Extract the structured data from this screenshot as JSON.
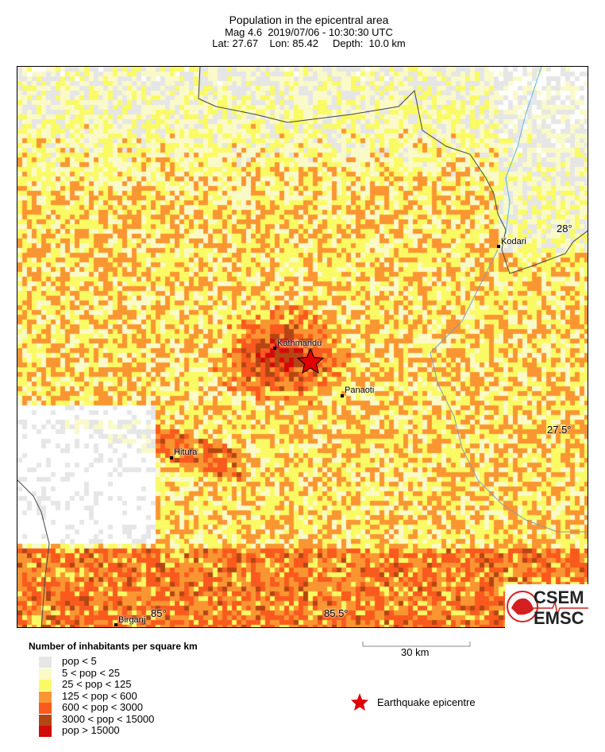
{
  "header": {
    "title": "Population in the epicentral area",
    "line2": "Mag 4.6  2019/07/06 - 10:30:30 UTC",
    "line3": "Lat: 27.67    Lon: 85.42     Depth:  10.0 km"
  },
  "map": {
    "cities": [
      {
        "name": "Kodari"
      },
      {
        "name": "Kathmandu"
      },
      {
        "name": "Panaoti"
      },
      {
        "name": "Hitura"
      },
      {
        "name": "Birganj"
      }
    ],
    "lat_labels": [
      "28°",
      "27.5°"
    ],
    "lon_labels": [
      "85°",
      "85.5°"
    ],
    "epicentre_icon": "red-star-icon"
  },
  "logo": {
    "top": "CSEM",
    "bottom": "EMSC"
  },
  "scale": {
    "label": "30 km"
  },
  "legend": {
    "title": "Number of inhabitants per square km",
    "items": [
      {
        "label": "pop < 5",
        "color": "#e6e6e6"
      },
      {
        "label": "5 < pop < 25",
        "color": "#fafac8"
      },
      {
        "label": "25 < pop < 125",
        "color": "#fafa64"
      },
      {
        "label": "125 < pop < 600",
        "color": "#fa9632"
      },
      {
        "label": "600 < pop < 3000",
        "color": "#fa5a1e"
      },
      {
        "label": "3000 < pop < 15000",
        "color": "#b44614"
      },
      {
        "label": "pop > 15000",
        "color": "#d20a0a"
      }
    ],
    "epicentre": "Earthquake epicentre"
  }
}
